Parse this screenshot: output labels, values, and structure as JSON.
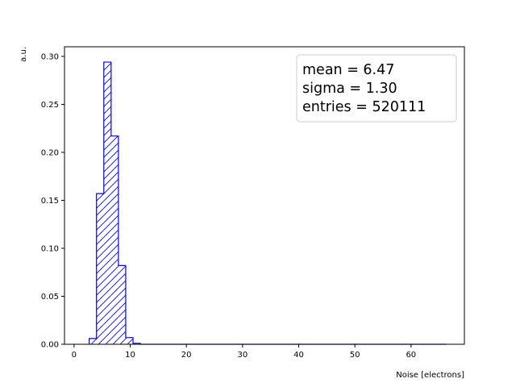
{
  "chart_data": {
    "type": "histogram",
    "title": "",
    "xlabel": "Noise [electrons]",
    "ylabel": "a.u.",
    "xlim": [
      -1.7,
      69.5
    ],
    "ylim": [
      0,
      0.31
    ],
    "xticks": [
      0,
      10,
      20,
      30,
      40,
      50,
      60
    ],
    "yticks": [
      0.0,
      0.05,
      0.1,
      0.15,
      0.2,
      0.25,
      0.3
    ],
    "xtick_labels": [
      "0",
      "10",
      "20",
      "30",
      "40",
      "50",
      "60"
    ],
    "ytick_labels": [
      "0.00",
      "0.05",
      "0.10",
      "0.15",
      "0.20",
      "0.25",
      "0.30"
    ],
    "bin_edges": [
      2.7,
      4.0,
      5.3,
      6.6,
      7.9,
      9.2,
      10.5,
      11.8,
      13.1,
      66.3
    ],
    "values": [
      0.006,
      0.157,
      0.294,
      0.217,
      0.082,
      0.007,
      0.001,
      0.0,
      0.0
    ],
    "color": "#0000ff",
    "hatch": "/",
    "grid": false,
    "legend_placement": "top-right",
    "stats": [
      "mean = 6.47",
      "sigma = 1.30",
      "entries = 520111"
    ]
  }
}
